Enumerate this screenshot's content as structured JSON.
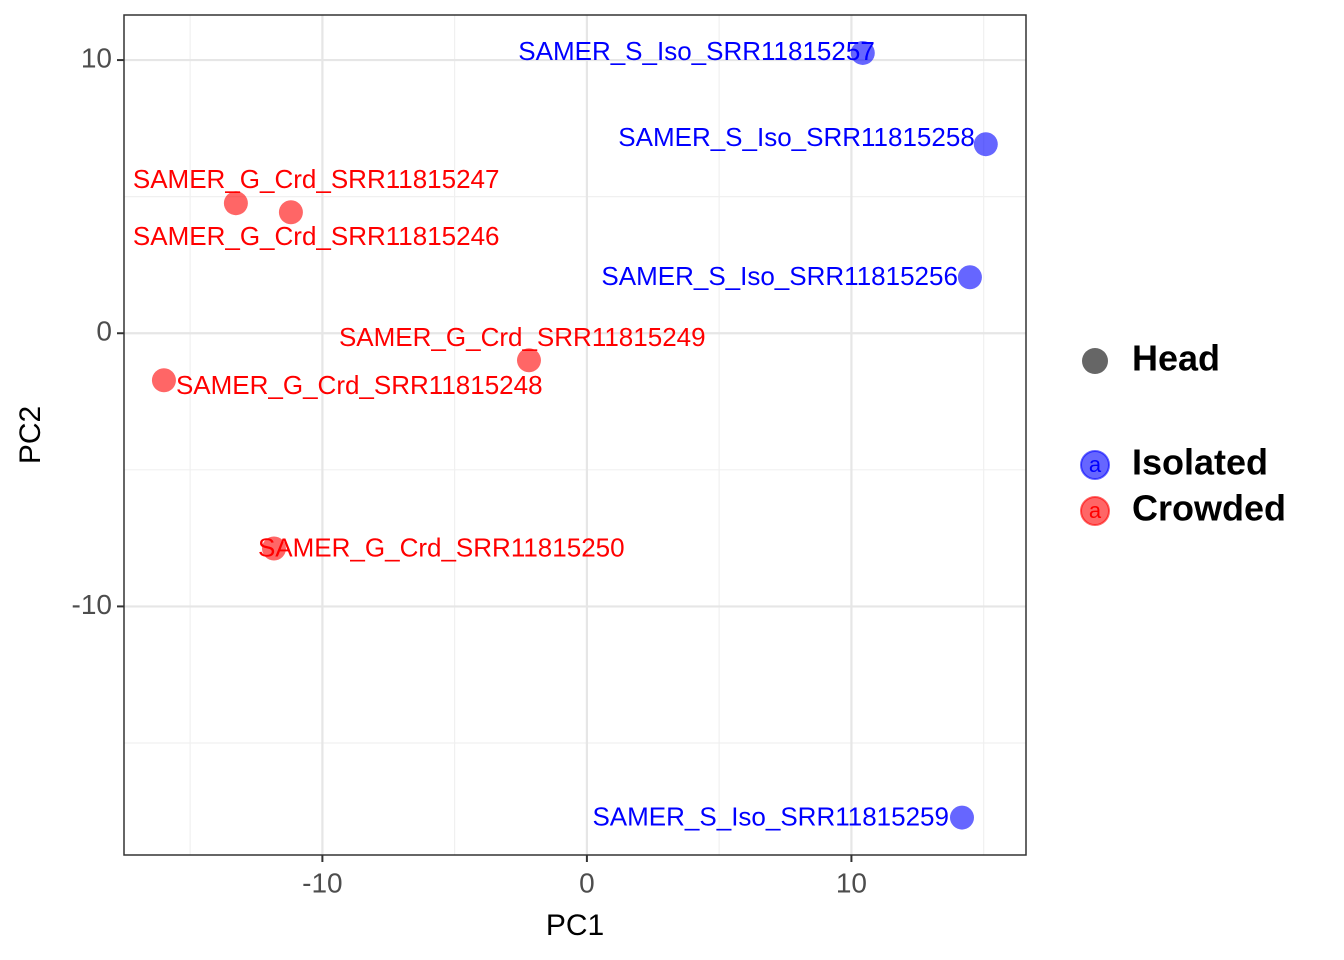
{
  "chart_data": {
    "type": "scatter",
    "xlabel": "PC1",
    "ylabel": "PC2",
    "xlim": [
      -17.5,
      16.6
    ],
    "ylim": [
      -19.1,
      11.65
    ],
    "xticks": [
      -10,
      0,
      10
    ],
    "yticks": [
      -10,
      0,
      10
    ],
    "xminorticks": [
      -15,
      -5,
      5,
      15
    ],
    "yminorticks": [
      -15,
      -5,
      5
    ],
    "grid": true,
    "shape_legend": [
      "Head"
    ],
    "legend_key_text": "a",
    "series": [
      {
        "name": "Isolated",
        "color": "#0000ff",
        "x": [
          10.43,
          15.08,
          14.48,
          14.18
        ],
        "values": [
          10.26,
          6.92,
          2.05,
          -17.73
        ],
        "labels": [
          "SAMER_S_Iso_SRR11815257",
          "SAMER_S_Iso_SRR11815258",
          "SAMER_S_Iso_SRR11815256",
          "SAMER_S_Iso_SRR11815259"
        ]
      },
      {
        "name": "Crowded",
        "color": "#ff0000",
        "x": [
          -13.27,
          -11.19,
          -2.19,
          -15.99,
          -11.83
        ],
        "values": [
          4.76,
          4.43,
          -0.99,
          -1.72,
          -7.88
        ],
        "labels": [
          "SAMER_G_Crd_SRR11815247",
          "SAMER_G_Crd_SRR11815246",
          "SAMER_G_Crd_SRR11815249",
          "SAMER_G_Crd_SRR11815248",
          "SAMER_G_Crd_SRR11815250"
        ]
      }
    ]
  }
}
